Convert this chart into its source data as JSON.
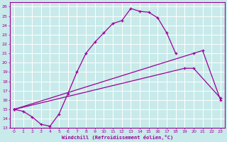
{
  "xlabel": "Windchill (Refroidissement éolien,°C)",
  "bg_color": "#c8eaea",
  "grid_color": "#ffffff",
  "line_color": "#990099",
  "xlim": [
    -0.5,
    23.5
  ],
  "ylim": [
    13,
    26.5
  ],
  "xticks": [
    0,
    1,
    2,
    3,
    4,
    5,
    6,
    7,
    8,
    9,
    10,
    11,
    12,
    13,
    14,
    15,
    16,
    17,
    18,
    19,
    20,
    21,
    22,
    23
  ],
  "yticks": [
    13,
    14,
    15,
    16,
    17,
    18,
    19,
    20,
    21,
    22,
    23,
    24,
    25,
    26
  ],
  "line1_x": [
    0,
    1,
    2,
    3,
    4,
    5,
    6,
    7,
    8,
    9,
    10,
    11,
    12,
    13,
    14,
    15,
    16,
    17,
    18
  ],
  "line1_y": [
    15,
    14.8,
    14.2,
    13.4,
    13.2,
    14.5,
    16.7,
    19.0,
    21.0,
    22.2,
    23.2,
    24.2,
    24.5,
    25.8,
    25.5,
    25.4,
    24.8,
    23.2,
    21.0
  ],
  "line2_x": [
    0,
    19,
    20,
    23
  ],
  "line2_y": [
    15,
    19.4,
    19.4,
    16.2
  ],
  "line3_x": [
    0,
    20,
    21,
    23
  ],
  "line3_y": [
    15,
    21.0,
    21.3,
    16.0
  ]
}
